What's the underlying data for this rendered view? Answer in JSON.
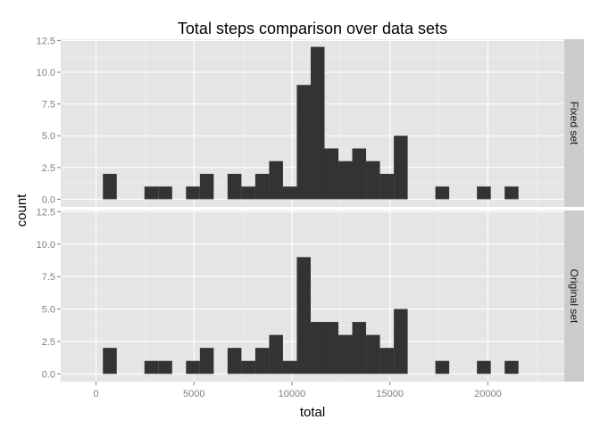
{
  "chart_data": {
    "type": "bar",
    "title": "Total steps comparison over data sets",
    "xlabel": "total",
    "ylabel": "count",
    "xlim": [
      -1800,
      23900
    ],
    "ylim": [
      -0.6,
      12.6
    ],
    "x_ticks": [
      0,
      5000,
      10000,
      15000,
      20000
    ],
    "x_tick_labels": [
      "0",
      "5000",
      "10000",
      "15000",
      "20000"
    ],
    "y_ticks": [
      0,
      2.5,
      5,
      7.5,
      10,
      12.5
    ],
    "y_tick_labels": [
      "0.0",
      "2.5",
      "5.0",
      "7.5",
      "10.0",
      "12.5"
    ],
    "bin_width": 707,
    "bin_start": -354,
    "grid": true,
    "bar_color": "#333333",
    "panel_background": "#e5e5e5",
    "strip_background": "#cccccc",
    "facets": [
      {
        "label": "Fixed set",
        "counts": [
          0,
          2,
          0,
          0,
          1,
          1,
          0,
          1,
          2,
          0,
          2,
          1,
          2,
          3,
          1,
          9,
          12,
          4,
          3,
          4,
          3,
          2,
          5,
          0,
          0,
          1,
          0,
          0,
          1,
          0,
          1
        ]
      },
      {
        "label": "Original set",
        "counts": [
          0,
          2,
          0,
          0,
          1,
          1,
          0,
          1,
          2,
          0,
          2,
          1,
          2,
          3,
          1,
          9,
          4,
          4,
          3,
          4,
          3,
          2,
          5,
          0,
          0,
          1,
          0,
          0,
          1,
          0,
          1
        ]
      }
    ]
  }
}
